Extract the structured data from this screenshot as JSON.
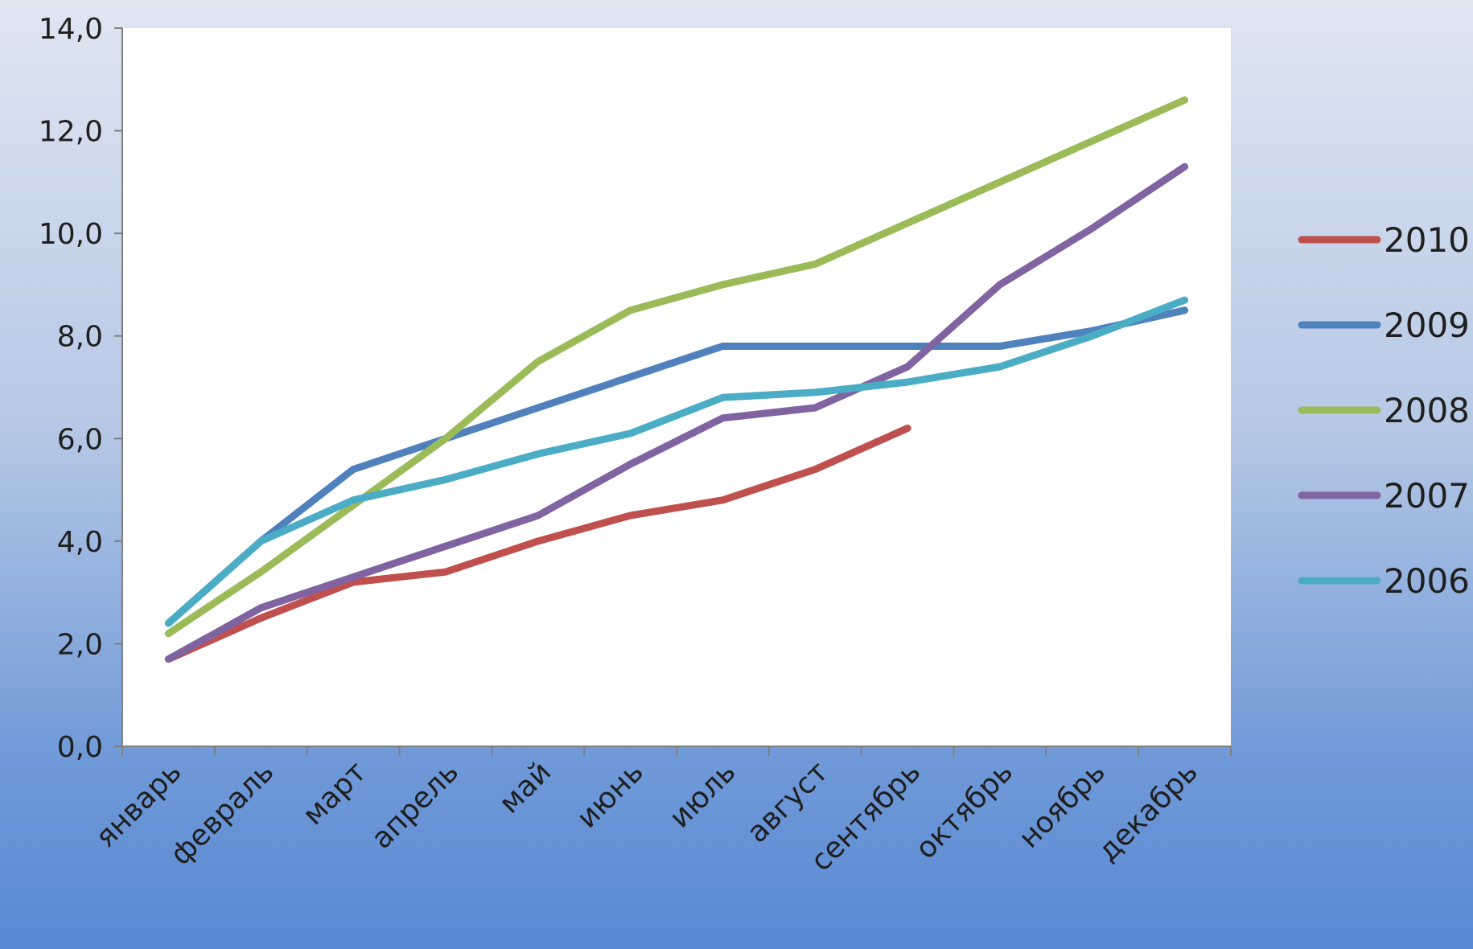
{
  "chart_data": {
    "type": "line",
    "title": "",
    "xlabel": "",
    "ylabel": "",
    "categories": [
      "январь",
      "февраль",
      "март",
      "апрель",
      "май",
      "июнь",
      "июль",
      "август",
      "сентябрь",
      "октябрь",
      "ноябрь",
      "декабрь"
    ],
    "ylim": [
      0,
      14
    ],
    "yticks": [
      0,
      2,
      4,
      6,
      8,
      10,
      12,
      14
    ],
    "ytick_labels": [
      "0,0",
      "2,0",
      "4,0",
      "6,0",
      "8,0",
      "10,0",
      "12,0",
      "14,0"
    ],
    "grid": false,
    "legend_position": "right",
    "plot_background": "#ffffff",
    "series": [
      {
        "name": "2010",
        "color": "#c0504d",
        "values": [
          1.7,
          2.5,
          3.2,
          3.4,
          4.0,
          4.5,
          4.8,
          5.4,
          6.2,
          null,
          null,
          null
        ]
      },
      {
        "name": "2009",
        "color": "#4f81bd",
        "values": [
          2.4,
          4.0,
          5.4,
          6.0,
          6.6,
          7.2,
          7.8,
          7.8,
          7.8,
          7.8,
          8.1,
          8.5
        ]
      },
      {
        "name": "2008",
        "color": "#9bbb59",
        "values": [
          2.2,
          3.4,
          4.7,
          6.0,
          7.5,
          8.5,
          9.0,
          9.4,
          10.2,
          11.0,
          11.8,
          12.6
        ]
      },
      {
        "name": "2007",
        "color": "#8064a2",
        "values": [
          1.7,
          2.7,
          3.3,
          3.9,
          4.5,
          5.5,
          6.4,
          6.6,
          7.4,
          9.0,
          10.1,
          11.3
        ]
      },
      {
        "name": "2006",
        "color": "#4bacc6",
        "values": [
          2.4,
          4.0,
          4.8,
          5.2,
          5.7,
          6.1,
          6.8,
          6.9,
          7.1,
          7.4,
          8.0,
          8.7
        ]
      }
    ]
  }
}
